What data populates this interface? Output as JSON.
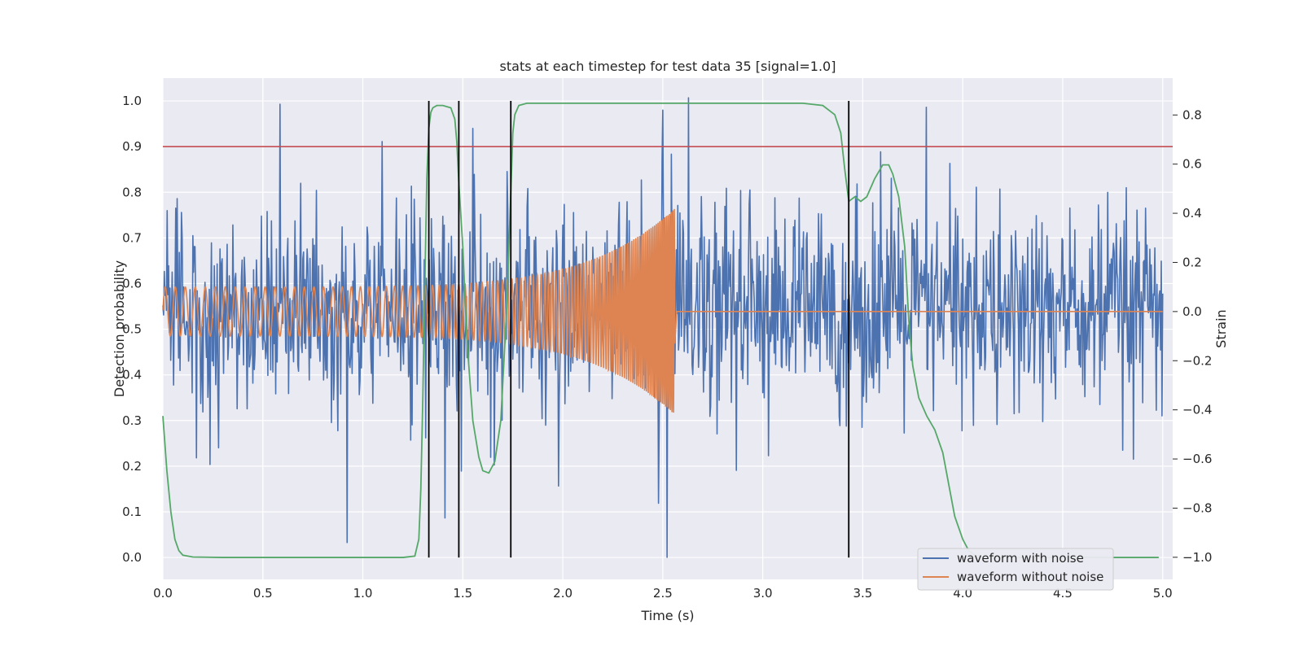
{
  "chart_data": {
    "type": "line",
    "title": "stats at each timestep for test data 35 [signal=1.0]",
    "xlabel": "Time (s)",
    "ylabel": "Detection probability",
    "ylabel_right": "Strain",
    "xlim": [
      0.0,
      5.05
    ],
    "ylim": [
      -0.048,
      1.05
    ],
    "ylim_right": [
      -1.09,
      0.95
    ],
    "grid": true,
    "x_ticks": [
      "0.0",
      "0.5",
      "1.0",
      "1.5",
      "2.0",
      "2.5",
      "3.0",
      "3.5",
      "4.0",
      "4.5",
      "5.0"
    ],
    "y_ticks": [
      "0.0",
      "0.1",
      "0.2",
      "0.3",
      "0.4",
      "0.5",
      "0.6",
      "0.7",
      "0.8",
      "0.9",
      "1.0"
    ],
    "y_right_ticks": [
      "−1.0",
      "−0.8",
      "−0.6",
      "−0.4",
      "−0.2",
      "0.0",
      "0.2",
      "0.4",
      "0.6",
      "0.8"
    ],
    "threshold": {
      "y": 0.9,
      "color": "#c44e52"
    },
    "vertical_markers": [
      1.33,
      1.48,
      1.74,
      3.43
    ],
    "vertical_marker_range": [
      0.0,
      1.0
    ],
    "series": [
      {
        "name": "waveform with noise",
        "axis": "right",
        "color": "#4c72b0",
        "description_values": {
          "x_start": 0.0,
          "x_end": 5.0,
          "min": -1.0,
          "max": 0.87,
          "std": 0.2
        },
        "spikes": [
          {
            "x": 0.92,
            "y": -0.94
          },
          {
            "x": 2.52,
            "y": -1.0
          },
          {
            "x": 2.63,
            "y": 0.87
          },
          {
            "x": 2.5,
            "y": 0.82
          },
          {
            "x": 1.41,
            "y": -0.84
          },
          {
            "x": 1.98,
            "y": -0.71
          },
          {
            "x": 3.59,
            "y": 0.65
          },
          {
            "x": 2.48,
            "y": -0.78
          }
        ]
      },
      {
        "name": "waveform without noise",
        "axis": "right",
        "color": "#dd8452",
        "chirp": {
          "t_merge": 2.56,
          "amp_start": 0.1,
          "amp_merge": 0.42,
          "freq_start": 20,
          "freq_merge": 130,
          "after_merge": 0.0
        }
      },
      {
        "name": "",
        "axis": "left",
        "color": "#55a868",
        "x": [
          0.0,
          0.02,
          0.04,
          0.06,
          0.08,
          0.1,
          0.15,
          0.3,
          0.6,
          1.0,
          1.2,
          1.26,
          1.28,
          1.29,
          1.3,
          1.31,
          1.32,
          1.33,
          1.34,
          1.35,
          1.37,
          1.4,
          1.44,
          1.46,
          1.47,
          1.48,
          1.5,
          1.52,
          1.55,
          1.58,
          1.6,
          1.63,
          1.66,
          1.69,
          1.72,
          1.74,
          1.75,
          1.76,
          1.78,
          1.82,
          2.0,
          2.5,
          3.0,
          3.2,
          3.3,
          3.36,
          3.39,
          3.41,
          3.43,
          3.46,
          3.49,
          3.52,
          3.56,
          3.6,
          3.63,
          3.65,
          3.68,
          3.71,
          3.73,
          3.75,
          3.78,
          3.82,
          3.86,
          3.9,
          3.93,
          3.96,
          4.0,
          4.03,
          4.06,
          4.1,
          4.2,
          4.5,
          4.8,
          4.98
        ],
        "y": [
          0.31,
          0.19,
          0.1,
          0.04,
          0.015,
          0.005,
          0.001,
          0.0,
          0.0,
          0.0,
          0.0,
          0.003,
          0.04,
          0.15,
          0.35,
          0.6,
          0.83,
          0.94,
          0.975,
          0.985,
          0.99,
          0.99,
          0.985,
          0.96,
          0.91,
          0.82,
          0.68,
          0.48,
          0.3,
          0.22,
          0.19,
          0.185,
          0.21,
          0.3,
          0.55,
          0.8,
          0.93,
          0.97,
          0.99,
          0.995,
          0.995,
          0.995,
          0.995,
          0.995,
          0.99,
          0.97,
          0.93,
          0.85,
          0.78,
          0.79,
          0.78,
          0.79,
          0.83,
          0.86,
          0.86,
          0.84,
          0.79,
          0.68,
          0.52,
          0.42,
          0.35,
          0.31,
          0.28,
          0.23,
          0.16,
          0.09,
          0.04,
          0.015,
          0.005,
          0.001,
          0.0,
          0.0,
          0.0,
          0.0
        ]
      }
    ],
    "legend": {
      "placement": "lower-right",
      "entries": [
        "waveform with noise",
        "waveform without noise"
      ]
    }
  },
  "colors": {
    "background": "#eaeaf2",
    "grid": "#ffffff",
    "markers": "#000000",
    "legend_bg": "#eaeaf2",
    "legend_border": "#cccccc"
  }
}
